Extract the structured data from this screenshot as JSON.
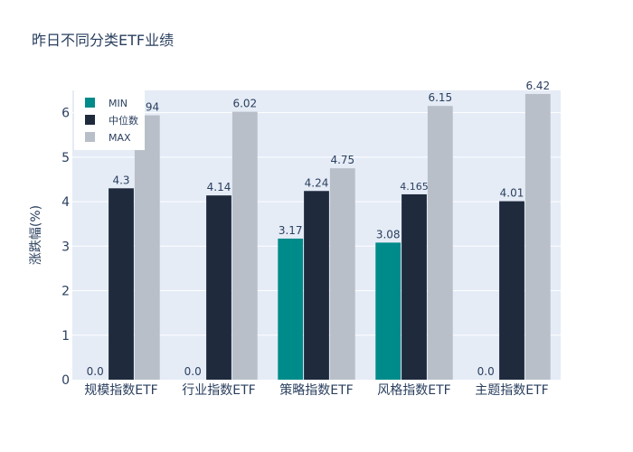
{
  "chart_data": {
    "type": "bar",
    "title": "昨日不同分类ETF业绩",
    "xlabel": "",
    "ylabel": "涨跌幅(%)",
    "categories": [
      "规模指数ETF",
      "行业指数ETF",
      "策略指数ETF",
      "风格指数ETF",
      "主题指数ETF"
    ],
    "series": [
      {
        "name": "MIN",
        "color": "#008b8b",
        "values": [
          0.0,
          0.0,
          3.17,
          3.08,
          0.0
        ],
        "labels": [
          "0.0",
          "0.0",
          "3.17",
          "3.08",
          "0.0"
        ]
      },
      {
        "name": "中位数",
        "color": "#1f2a3d",
        "values": [
          4.3,
          4.14,
          4.24,
          4.165,
          4.01
        ],
        "labels": [
          "4.3",
          "4.14",
          "4.24",
          "4.165",
          "4.01"
        ]
      },
      {
        "name": "MAX",
        "color": "#b8bfc8",
        "values": [
          5.94,
          6.02,
          4.75,
          6.15,
          6.42
        ],
        "labels": [
          "5.94",
          "6.02",
          "4.75",
          "6.15",
          "6.42"
        ]
      }
    ],
    "ylim": [
      0,
      6.5
    ],
    "yticks": [
      0,
      1,
      2,
      3,
      4,
      5,
      6
    ],
    "grid": true,
    "legend": "top-left",
    "plot_bg": "#e5ecf6"
  }
}
